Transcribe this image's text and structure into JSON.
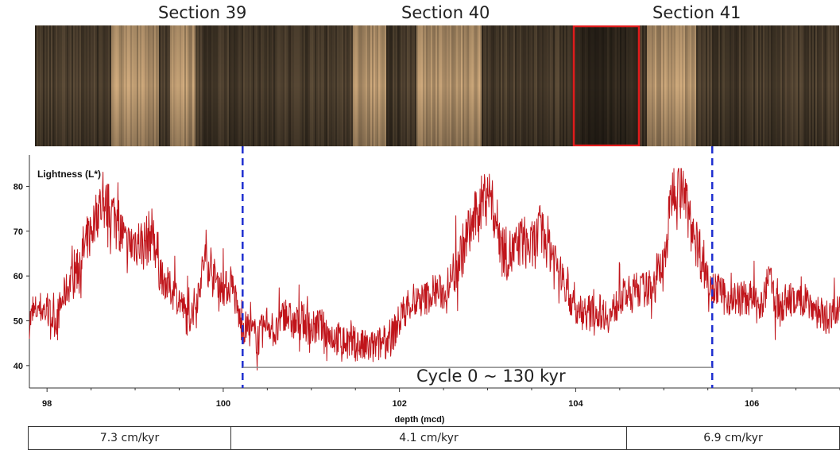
{
  "sections": [
    "Section 39",
    "Section 40",
    "Section 41"
  ],
  "colors": {
    "series": "#c0151b",
    "boundary": "#1f2fd0",
    "highlight_box": "#e01b1b",
    "cycle_bar": "#888888"
  },
  "chart_data": {
    "type": "line",
    "title": "",
    "ylabel": "Lightness (L*)",
    "xlabel": "depth (mcd)",
    "xlim": [
      97.8,
      107.0
    ],
    "ylim": [
      35,
      87
    ],
    "xticks": [
      98,
      100,
      102,
      104,
      106
    ],
    "yticks": [
      40,
      50,
      60,
      70,
      80
    ],
    "series": [
      {
        "x": [
          97.8,
          97.9,
          98.0,
          98.1,
          98.2,
          98.3,
          98.4,
          98.5,
          98.6,
          98.7,
          98.8,
          98.9,
          99.0,
          99.1,
          99.2,
          99.3,
          99.4,
          99.5,
          99.6,
          99.7,
          99.8,
          99.9,
          100.0,
          100.1,
          100.2,
          100.3,
          100.4,
          100.5,
          100.6,
          100.7,
          100.8,
          100.9,
          101.0,
          101.1,
          101.2,
          101.3,
          101.4,
          101.5,
          101.6,
          101.7,
          101.8,
          101.9,
          102.0,
          102.1,
          102.2,
          102.3,
          102.4,
          102.5,
          102.6,
          102.7,
          102.8,
          102.9,
          103.0,
          103.1,
          103.2,
          103.3,
          103.4,
          103.5,
          103.6,
          103.7,
          103.8,
          103.9,
          104.0,
          104.1,
          104.2,
          104.3,
          104.4,
          104.5,
          104.6,
          104.7,
          104.8,
          104.9,
          105.0,
          105.1,
          105.2,
          105.3,
          105.4,
          105.5,
          105.6,
          105.7,
          105.8,
          105.9,
          106.0,
          106.1,
          106.2,
          106.3,
          106.4,
          106.5,
          106.6,
          106.7,
          106.8,
          106.9,
          107.0
        ],
        "values": [
          50,
          53,
          52,
          50,
          56,
          60,
          65,
          70,
          76,
          75,
          73,
          66,
          68,
          67,
          70,
          60,
          57,
          55,
          50,
          55,
          65,
          60,
          57,
          58,
          49,
          48,
          46,
          50,
          47,
          52,
          49,
          50,
          48,
          49,
          47,
          46,
          45,
          45,
          44,
          44,
          45,
          46,
          50,
          54,
          54,
          55,
          57,
          56,
          60,
          65,
          70,
          75,
          80,
          72,
          65,
          65,
          68,
          66,
          70,
          67,
          62,
          57,
          52,
          52,
          52,
          52,
          51,
          55,
          56,
          57,
          57,
          59,
          62,
          80,
          81,
          72,
          66,
          60,
          57,
          55,
          55,
          55,
          55,
          52,
          60,
          52,
          55,
          54,
          55,
          53,
          51,
          51,
          52
        ]
      }
    ],
    "annotations": {
      "cycle_label": "Cycle 0  ~ 130 kyr",
      "cycle_start": 100.22,
      "cycle_end": 105.55,
      "cycle_level": 39.6,
      "boundaries": [
        100.22,
        105.55
      ]
    }
  },
  "rates": [
    "7.3 cm/kyr",
    "4.1 cm/kyr",
    "6.9 cm/kyr"
  ]
}
